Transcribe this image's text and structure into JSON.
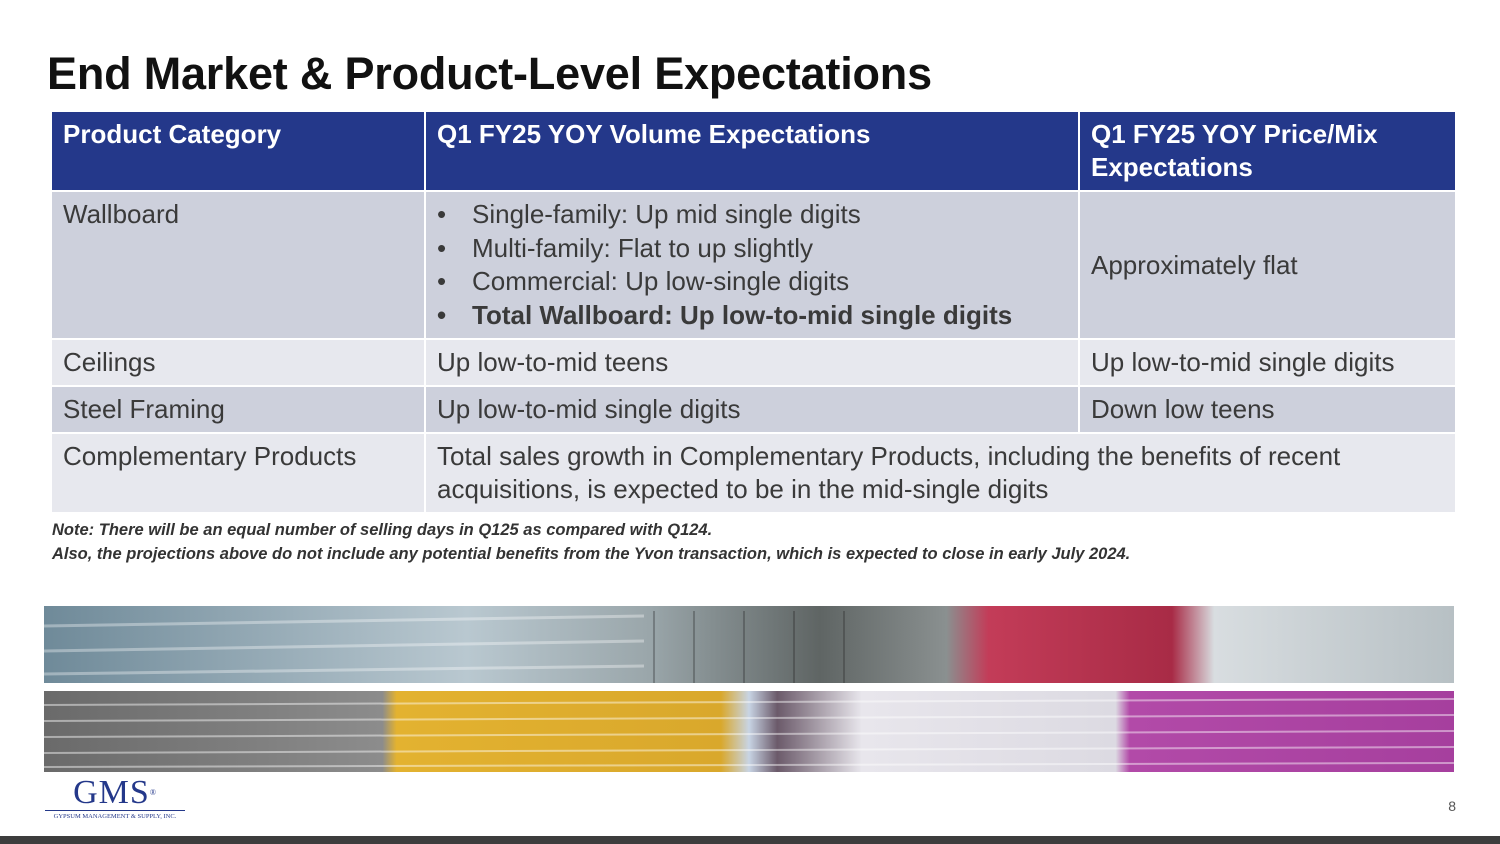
{
  "title": "End Market & Product-Level Expectations",
  "table": {
    "headers": [
      "Product Category",
      "Q1 FY25 YOY Volume Expectations",
      "Q1 FY25 YOY Price/Mix Expectations"
    ],
    "rows": [
      [
        "Wallboard",
        [
          "Single-family: Up mid single digits",
          "Multi-family: Flat to up slightly",
          "Commercial: Up low-single digits",
          "Total Wallboard: Up low-to-mid single digits"
        ],
        "Approximately flat"
      ],
      [
        "Ceilings",
        "Up low-to-mid teens",
        "Up low-to-mid single digits"
      ],
      [
        "Steel Framing",
        "Up low-to-mid single digits",
        "Down low teens"
      ],
      [
        "Complementary Products",
        "Total sales growth in Complementary Products, including the benefits of recent acquisitions, is expected to be in the mid-single digits"
      ]
    ]
  },
  "notes": [
    "Note:  There will be an equal number of selling days in Q125 as compared with Q124.",
    "Also, the projections above do not include any potential benefits from the Yvon transaction, which is expected to close in early July 2024."
  ],
  "logo": {
    "name": "GMS",
    "mark": "®",
    "tagline": "GYPSUM MANAGEMENT & SUPPLY, INC."
  },
  "page_number": "8"
}
